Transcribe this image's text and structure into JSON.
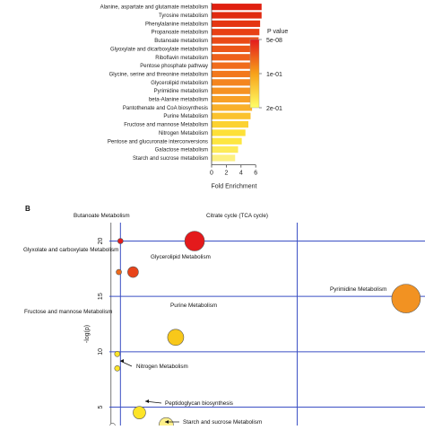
{
  "chart_data": [
    {
      "type": "bar",
      "orientation": "horizontal",
      "categories": [
        "Alanine, aspartate and glutamate metabolism",
        "Tyrosine metabolism",
        "Phenylalanine metabolism",
        "Propanoate metabolism",
        "Butanoate metabolism",
        "Glyoxylate and dicarboxylate metabolism",
        "Riboflavin metabolism",
        "Pentose phosphate pathway",
        "Glycine, serine and threonine metabolism",
        "Glycerolipid metabolism",
        "Pyrimidine metabolism",
        "beta-Alanine metabolism",
        "Pantothenate and CoA biosynthesis",
        "Purine Metabolism",
        "Fructose and mannose Metabolism",
        "Nitrogen Metabolism",
        "Pentose and glucuronate interconversions",
        "Galactose metabolism",
        "Starch and sucrose metabolism"
      ],
      "values": [
        6.8,
        6.8,
        6.6,
        6.5,
        6.4,
        6.4,
        6.3,
        6.2,
        6.2,
        6.1,
        6.0,
        5.9,
        5.5,
        5.3,
        5.0,
        4.6,
        4.1,
        3.6,
        3.2
      ],
      "colors": [
        "#e02010",
        "#e02a10",
        "#e53512",
        "#e84014",
        "#ea4a16",
        "#ec5618",
        "#ee601a",
        "#f06c1c",
        "#f2781e",
        "#f48520",
        "#f69222",
        "#f8a026",
        "#f9b02a",
        "#fbc22e",
        "#fcd232",
        "#fde038",
        "#fde640",
        "#fdeb58",
        "#fdf080"
      ],
      "xlabel": "Fold Enrichment",
      "xticks": [
        0,
        2,
        4,
        6
      ],
      "xlim": [
        0,
        7
      ],
      "legend": {
        "title": "P value",
        "labels": [
          "5e-08",
          "1e-01",
          "2e-01"
        ],
        "colors": [
          "#e41a1c",
          "#f7a21a",
          "#ffff66"
        ],
        "position": "right"
      }
    },
    {
      "type": "scatter",
      "panel_label": "B",
      "ylabel": "-log(p)",
      "yticks": [
        5,
        10,
        15,
        20
      ],
      "ylim": [
        3.5,
        21.5
      ],
      "xlim": [
        0,
        1
      ],
      "points": [
        {
          "name": "Citrate cycle (TCA cycle)",
          "x": 0.27,
          "y": 20.0,
          "size": 11,
          "color": "#e41a1c"
        },
        {
          "name": "Butanoate Metabolism",
          "x": 0.035,
          "y": 20.0,
          "size": 3,
          "color": "#e41a1c"
        },
        {
          "name": "Glyxolate and carboxylate Metabolism",
          "x": 0.03,
          "y": 17.2,
          "size": 3,
          "color": "#ee6a1a"
        },
        {
          "name": "Glycerolipid Metabolism",
          "x": 0.075,
          "y": 17.2,
          "size": 6,
          "color": "#e8441a"
        },
        {
          "name": "Pyrimidine Metabolism",
          "x": 0.94,
          "y": 14.8,
          "size": 16,
          "color": "#f29222"
        },
        {
          "name": "Purine Metabolism",
          "x": 0.21,
          "y": 11.3,
          "size": 9,
          "color": "#f8c81a"
        },
        {
          "name": "Fructose and mannose Metabolism",
          "x": 0.025,
          "y": 9.8,
          "size": 3,
          "color": "#fde428"
        },
        {
          "name": "Nitrogen Metabolism",
          "x": 0.025,
          "y": 8.5,
          "size": 3,
          "color": "#fde428"
        },
        {
          "name": "Peptidoglycan biosynthesis",
          "x": 0.095,
          "y": 4.5,
          "size": 7,
          "color": "#fde428"
        },
        {
          "name": "Starch and sucrose Metabolism",
          "x": 0.18,
          "y": 3.4,
          "size": 8,
          "color": "#fef08a"
        },
        {
          "name": "",
          "x": 0.01,
          "y": 3.3,
          "size": 3,
          "color": "#ffffff"
        }
      ]
    }
  ]
}
